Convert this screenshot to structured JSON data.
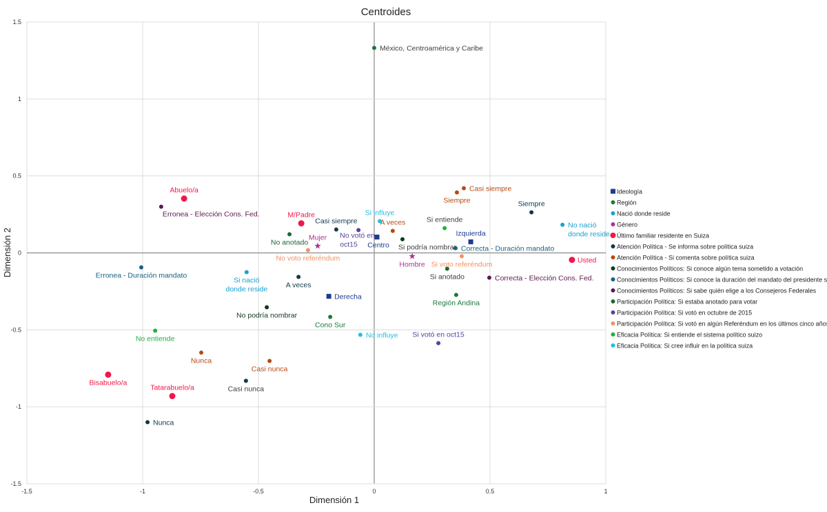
{
  "chart_data": {
    "type": "scatter",
    "title": "Centroides",
    "xlabel": "Dimensión 1",
    "ylabel": "Dimensión 2",
    "xlim": [
      -1.5,
      1
    ],
    "ylim": [
      -1.5,
      1.5
    ],
    "xticks": [
      "-1.5",
      "-1",
      "-0.5",
      "0",
      "0.5",
      "1"
    ],
    "yticks": [
      "1.5",
      "1",
      "0.5",
      "0",
      "-0.5",
      "-1",
      "-1.5"
    ],
    "grid": true,
    "legend_position": "right",
    "label_gray": "#404040",
    "series": [
      {
        "name": "Ideología",
        "color": "#1f3a93",
        "marker": "square",
        "points": [
          {
            "label": "Centro",
            "x": 0.012,
            "y": 0.103,
            "pos": "bottom"
          },
          {
            "label": "Izquierda",
            "x": 0.417,
            "y": 0.072,
            "pos": "top"
          },
          {
            "label": "Derecha",
            "x": -0.196,
            "y": -0.282,
            "pos": "right"
          }
        ]
      },
      {
        "name": "Región",
        "color": "#1a7a3a",
        "marker": "circle",
        "points": [
          {
            "label": "México, Centroamérica y Caribe",
            "x": 0.0,
            "y": 1.332,
            "pos": "right",
            "gray": true
          },
          {
            "label": "Región Andina",
            "x": 0.354,
            "y": -0.273,
            "pos": "bottom"
          },
          {
            "label": "Cono Sur",
            "x": -0.19,
            "y": -0.416,
            "pos": "bottom"
          }
        ]
      },
      {
        "name": "Nació donde reside",
        "color": "#1aa0d0",
        "marker": "circle",
        "points": [
          {
            "label": "Si nació\ndonde reside",
            "x": -0.551,
            "y": -0.125,
            "pos": "bottom"
          },
          {
            "label": "No nació\ndonde reside",
            "x": 0.813,
            "y": 0.183,
            "pos": "right"
          }
        ]
      },
      {
        "name": "Género",
        "color": "#b03090",
        "marker": "star",
        "points": [
          {
            "label": "Mujer",
            "x": -0.244,
            "y": 0.045,
            "pos": "top"
          },
          {
            "label": "Hombre",
            "x": 0.164,
            "y": -0.022,
            "pos": "bottom"
          }
        ]
      },
      {
        "name": "Último familiar residente en Suiza",
        "color": "#f0174a",
        "marker": "bigcircle",
        "points": [
          {
            "label": "Abuelo/a",
            "x": -0.821,
            "y": 0.353,
            "pos": "top"
          },
          {
            "label": "M/Padre",
            "x": -0.315,
            "y": 0.192,
            "pos": "top"
          },
          {
            "label": "Usted",
            "x": 0.854,
            "y": -0.045,
            "pos": "right"
          },
          {
            "label": "Bisabuelo/a",
            "x": -1.149,
            "y": -0.791,
            "pos": "bottom"
          },
          {
            "label": "Tatarabuelo/a",
            "x": -0.872,
            "y": -0.93,
            "pos": "top"
          }
        ]
      },
      {
        "name": "Atención Política - Se informa sobre política suiza",
        "color": "#0f3a4a",
        "marker": "circle",
        "points": [
          {
            "label": "Siempre",
            "x": 0.679,
            "y": 0.264,
            "pos": "top"
          },
          {
            "label": "Casi siempre",
            "x": -0.164,
            "y": 0.152,
            "pos": "top"
          },
          {
            "label": "A veces",
            "x": -0.327,
            "y": -0.156,
            "pos": "bottom"
          },
          {
            "label": "Casi nunca",
            "x": -0.554,
            "y": -0.831,
            "pos": "bottom",
            "gray": true
          },
          {
            "label": "Nunca",
            "x": -0.979,
            "y": -1.1,
            "pos": "right"
          }
        ]
      },
      {
        "name": "Atención Política - Si comenta sobre política suiza",
        "color": "#b84a10",
        "marker": "circle",
        "points": [
          {
            "label": "Casi siempre",
            "x": 0.387,
            "y": 0.42,
            "pos": "right"
          },
          {
            "label": "Siempre",
            "x": 0.357,
            "y": 0.393,
            "pos": "bottom"
          },
          {
            "label": "A veces",
            "x": 0.08,
            "y": 0.143,
            "pos": "top"
          },
          {
            "label": "Nunca",
            "x": -0.747,
            "y": -0.648,
            "pos": "bottom"
          },
          {
            "label": "Casi nunca",
            "x": -0.452,
            "y": -0.702,
            "pos": "bottom"
          }
        ]
      },
      {
        "name": "Conocimientos Políticos: Si conoce algún tema sometido a votación",
        "color": "#0f3a1f",
        "marker": "circle",
        "points": [
          {
            "label": "Si podría nombrar",
            "x": 0.122,
            "y": 0.089,
            "pos": "bottom",
            "gray": true
          },
          {
            "label": "No podría nombrar",
            "x": -0.464,
            "y": -0.353,
            "pos": "bottom"
          }
        ]
      },
      {
        "name": "Conocimientos Políticos: Si conoce la duración del mandato del presidente suizo",
        "color": "#1a6080",
        "marker": "circle",
        "points": [
          {
            "label": "Correcta - Duración mandato",
            "x": 0.351,
            "y": 0.031,
            "pos": "right"
          },
          {
            "label": "Erronea - Duración mandato",
            "x": -1.006,
            "y": -0.094,
            "pos": "bottom"
          }
        ]
      },
      {
        "name": "Conocimientos Políticos: Si sabe quién elige a los Consejeros Federales",
        "color": "#5a1a50",
        "marker": "circle",
        "points": [
          {
            "label": "Erronea  - Elección Cons. Fed.",
            "x": -0.92,
            "y": 0.3,
            "pos": "bottomright"
          },
          {
            "label": "Correcta - Elección Cons. Fed.",
            "x": 0.497,
            "y": -0.161,
            "pos": "right"
          }
        ]
      },
      {
        "name": "Participación Política: Si estaba anotado para votar",
        "color": "#1a6a30",
        "marker": "circle",
        "points": [
          {
            "label": "No anotado",
            "x": -0.366,
            "y": 0.121,
            "pos": "bottom"
          },
          {
            "label": "Si anotado",
            "x": 0.315,
            "y": -0.103,
            "pos": "bottom",
            "gray": true
          }
        ]
      },
      {
        "name": "Participación Política: Si votó en octubre de 2015",
        "color": "#5a40a0",
        "marker": "circle",
        "points": [
          {
            "label": "No votó en\noct15",
            "x": -0.068,
            "y": 0.148,
            "pos": "bottomleft"
          },
          {
            "label": "Si votó en oct15",
            "x": 0.277,
            "y": -0.586,
            "pos": "top"
          }
        ]
      },
      {
        "name": "Participación Política: Si votó en algún Referéndum en los últimos cinco años",
        "color": "#f59060",
        "marker": "circle",
        "points": [
          {
            "label": "No voto referéndum",
            "x": -0.286,
            "y": 0.018,
            "pos": "bottom"
          },
          {
            "label": "Si voto referéndum",
            "x": 0.378,
            "y": -0.022,
            "pos": "bottom"
          }
        ]
      },
      {
        "name": "Eficacia Política: Si entiende el sistema político suizo",
        "color": "#20b040",
        "marker": "circle",
        "points": [
          {
            "label": "Si entiende",
            "x": 0.304,
            "y": 0.161,
            "pos": "top",
            "gray": true
          },
          {
            "label": "No entiende",
            "x": -0.946,
            "y": -0.505,
            "pos": "bottom"
          }
        ]
      },
      {
        "name": "Eficacia Política: Si cree influir en la política suiza",
        "color": "#20c0e0",
        "marker": "circle",
        "points": [
          {
            "label": "Si influye",
            "x": 0.024,
            "y": 0.206,
            "pos": "top"
          },
          {
            "label": "No influye",
            "x": -0.06,
            "y": -0.532,
            "pos": "right"
          }
        ]
      }
    ]
  }
}
